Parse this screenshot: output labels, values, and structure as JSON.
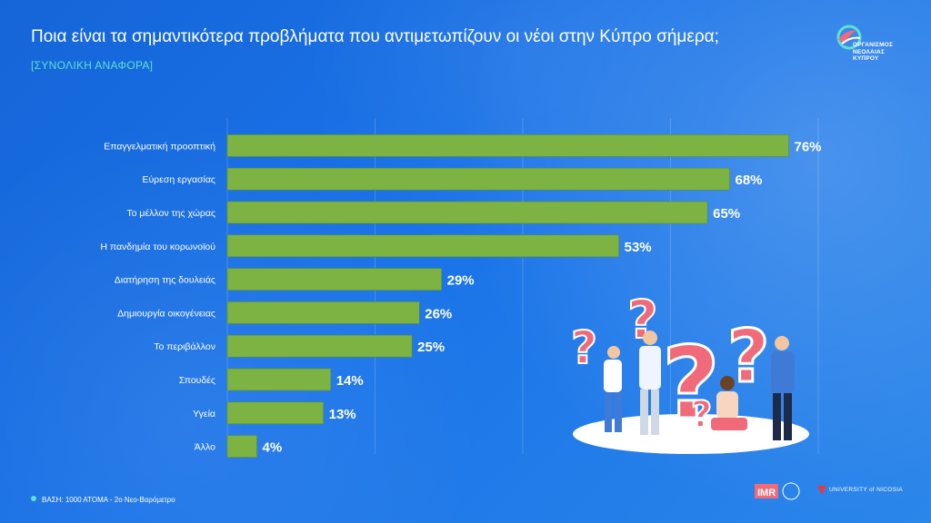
{
  "page": {
    "title": "Ποια είναι τα σημαντικότερα προβλήματα που αντιμετωπίζουν οι νέοι στην Κύπρο σήμερα;",
    "subtitle": "[ΣΥΝΟΛΙΚΗ ΑΝΑΦΟΡΑ]",
    "footnote": "ΒΑΣΗ: 1000 ΑΤΟΜΑ - 2ο Νεο-Βαρόμετρο",
    "logo_text": [
      "ΟΡΓΑΝΙΣΜΟΣ",
      "ΝΕΟΛΑΙΑΣ",
      "ΚΥΠΡΟΥ"
    ],
    "partner_logos": {
      "imr": "IMR",
      "unic": "UNIVERSITY of NICOSIA"
    }
  },
  "colors": {
    "background": "#1a73e8",
    "bar": "#7cb342",
    "bar_stroke": "#5e8f2f",
    "subtitle": "#5fe0d0",
    "text": "#ffffff",
    "accent_question": "#f06a7a"
  },
  "chart_data": {
    "type": "bar",
    "orientation": "horizontal",
    "categories": [
      "Επαγγελματική προοπτική",
      "Εύρεση εργασίας",
      "Το μέλλον της χώρας",
      "Η πανδημία του κορωνοϊού",
      "Διατήρηση της δουλειάς",
      "Δημιουργία οικογένειας",
      "Το περιβάλλον",
      "Σπουδές",
      "Υγεία",
      "Άλλο"
    ],
    "values": [
      76,
      68,
      65,
      53,
      29,
      26,
      25,
      14,
      13,
      4
    ],
    "value_labels": [
      "76%",
      "68%",
      "65%",
      "53%",
      "29%",
      "26%",
      "25%",
      "14%",
      "13%",
      "4%"
    ],
    "unit": "%",
    "xlim": [
      0,
      80
    ],
    "grid": true,
    "legend": "none"
  }
}
